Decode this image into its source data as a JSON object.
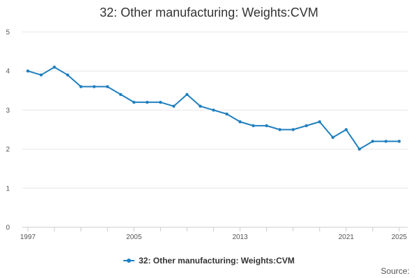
{
  "title": "32: Other manufacturing: Weights:CVM",
  "source_label": "Source:",
  "colors": {
    "series": "#1f7fbf",
    "grid": "#e6e6e6",
    "axis": "#cccccc"
  },
  "chart_data": {
    "type": "line",
    "title": "32: Other manufacturing: Weights:CVM",
    "xlabel": "",
    "ylabel": "",
    "ylim": [
      0,
      5
    ],
    "xlim": [
      1997,
      2025
    ],
    "y_ticks": [
      0,
      1,
      2,
      3,
      4,
      5
    ],
    "x_tick_labels": [
      "1997",
      "2005",
      "2013",
      "2021",
      "2025"
    ],
    "grid": true,
    "legend_position": "bottom",
    "series": [
      {
        "name": "32: Other manufacturing: Weights:CVM",
        "x": [
          1997,
          1998,
          1999,
          2000,
          2001,
          2002,
          2003,
          2004,
          2005,
          2006,
          2007,
          2008,
          2009,
          2010,
          2011,
          2012,
          2013,
          2014,
          2015,
          2016,
          2017,
          2018,
          2019,
          2020,
          2021,
          2022,
          2023,
          2024,
          2025
        ],
        "values": [
          4.0,
          3.9,
          4.1,
          3.9,
          3.6,
          3.6,
          3.6,
          3.4,
          3.2,
          3.2,
          3.2,
          3.1,
          3.4,
          3.1,
          3.0,
          2.9,
          2.7,
          2.6,
          2.6,
          2.5,
          2.5,
          2.6,
          2.7,
          2.3,
          2.5,
          2.0,
          2.2,
          2.2,
          2.2
        ]
      }
    ]
  }
}
